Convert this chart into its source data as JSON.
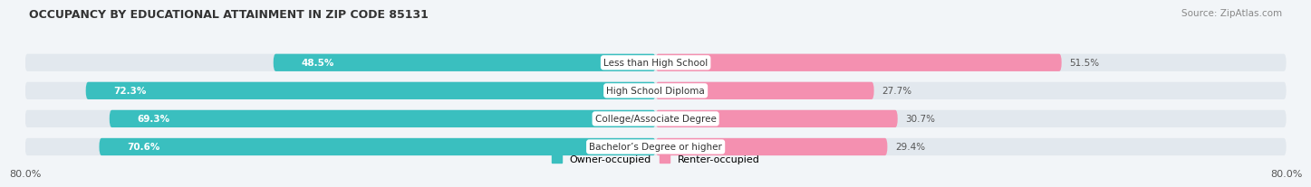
{
  "title": "OCCUPANCY BY EDUCATIONAL ATTAINMENT IN ZIP CODE 85131",
  "source": "Source: ZipAtlas.com",
  "categories": [
    "Less than High School",
    "High School Diploma",
    "College/Associate Degree",
    "Bachelor’s Degree or higher"
  ],
  "owner_pct": [
    48.5,
    72.3,
    69.3,
    70.6
  ],
  "renter_pct": [
    51.5,
    27.7,
    30.7,
    29.4
  ],
  "owner_color": "#3abfbf",
  "renter_color": "#f490b0",
  "owner_label": "Owner-occupied",
  "renter_label": "Renter-occupied",
  "background_color": "#f2f5f8",
  "bar_bg_color": "#e2e8ee",
  "title_fontsize": 9.5,
  "label_fontsize": 8,
  "axis_max": 80.0,
  "x_tick_label": "80.0%"
}
